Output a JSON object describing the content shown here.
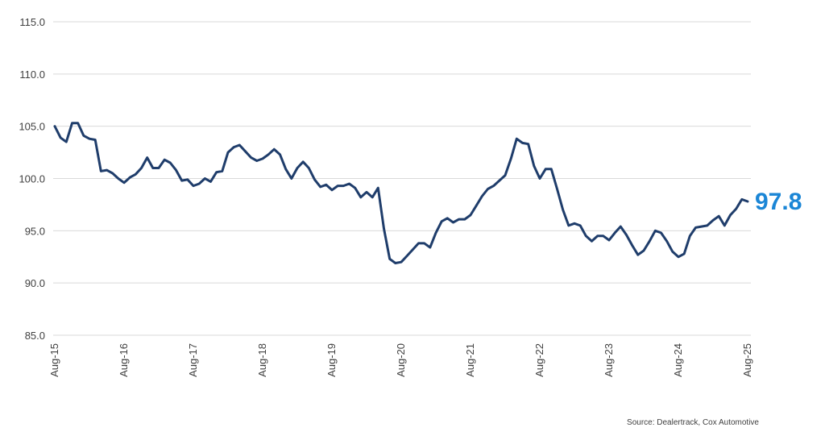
{
  "chart_data": {
    "type": "line",
    "title": "",
    "xlabel": "",
    "ylabel": "",
    "ylim": [
      85,
      115
    ],
    "yticks": [
      "85.0",
      "90.0",
      "95.0",
      "100.0",
      "105.0",
      "110.0",
      "115.0"
    ],
    "xticks": [
      "Aug-15",
      "Aug-16",
      "Aug-17",
      "Aug-18",
      "Aug-19",
      "Aug-20",
      "Aug-21",
      "Aug-22",
      "Aug-23",
      "Aug-24",
      "Aug-25"
    ],
    "grid": true,
    "legend": "none",
    "line_color": "#1f3d6b",
    "series": [
      {
        "values": [
          105.0,
          103.9,
          103.5,
          105.3,
          105.3,
          104.1,
          103.8,
          103.7,
          100.7,
          100.8,
          100.5,
          100.0,
          99.6,
          100.1,
          100.4,
          101.0,
          102.0,
          101.0,
          101.0,
          101.8,
          101.5,
          100.8,
          99.8,
          99.9,
          99.3,
          99.5,
          100.0,
          99.7,
          100.6,
          100.7,
          102.5,
          103.0,
          103.2,
          102.6,
          102.0,
          101.7,
          101.9,
          102.3,
          102.8,
          102.3,
          100.9,
          100.0,
          101.0,
          101.6,
          101.0,
          99.9,
          99.2,
          99.4,
          98.9,
          99.3,
          99.3,
          99.5,
          99.1,
          98.2,
          98.7,
          98.2,
          99.1,
          95.2,
          92.3,
          91.9,
          92.0,
          92.6,
          93.2,
          93.8,
          93.8,
          93.4,
          94.8,
          95.9,
          96.2,
          95.8,
          96.1,
          96.1,
          96.5,
          97.4,
          98.3,
          99.0,
          99.3,
          99.8,
          100.3,
          101.9,
          103.8,
          103.4,
          103.3,
          101.2,
          100.0,
          100.9,
          100.9,
          99.0,
          97.0,
          95.5,
          95.7,
          95.5,
          94.5,
          94.0,
          94.5,
          94.5,
          94.1,
          94.8,
          95.4,
          94.6,
          93.6,
          92.7,
          93.1,
          94.0,
          95.0,
          94.8,
          94.0,
          93.0,
          92.5,
          92.8,
          94.5,
          95.3,
          95.4,
          95.5,
          96.0,
          96.4,
          95.5,
          96.5,
          97.1,
          98.0,
          97.8
        ]
      }
    ],
    "last_value_label": "97.8"
  },
  "source": "Source: Dealertrack, Cox Automotive"
}
